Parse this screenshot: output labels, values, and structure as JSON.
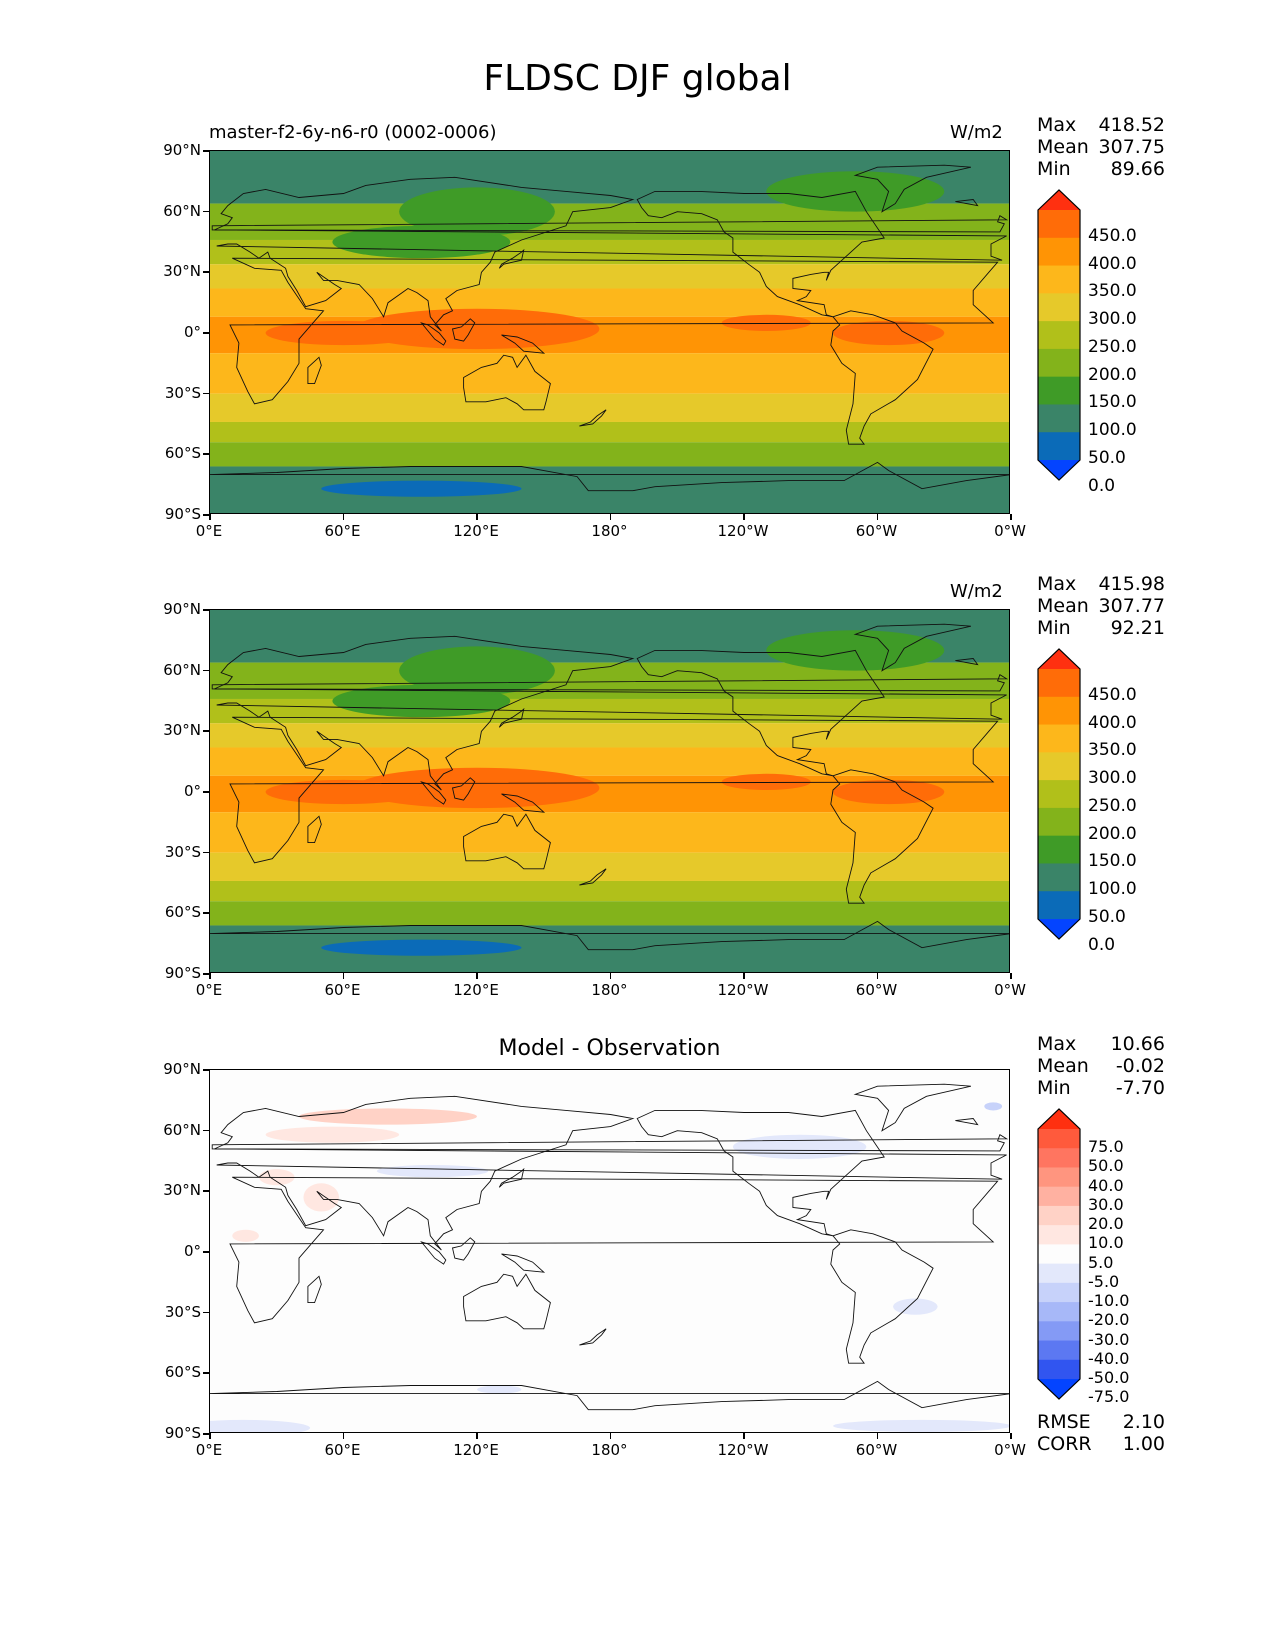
{
  "title": "FLDSC DJF global",
  "panels": [
    {
      "id": "model",
      "left_label": "master-f2-6y-n6-r0 (0002-0006)",
      "center_label": "",
      "units": "W/m2",
      "stats": [
        {
          "k": "Max",
          "v": "418.52"
        },
        {
          "k": "Mean",
          "v": "307.75"
        },
        {
          "k": "Min",
          "v": "89.66"
        }
      ],
      "colorbar": {
        "labels": [
          "450.0",
          "400.0",
          "350.0",
          "300.0",
          "250.0",
          "200.0",
          "150.0",
          "100.0",
          "50.0",
          "0.0"
        ],
        "colors": [
          "#ff3010",
          "#ff6c08",
          "#ff9405",
          "#fdb71b",
          "#e6c92a",
          "#b1c01a",
          "#83b31b",
          "#3f9b27",
          "#3a8468",
          "#0b6bb8",
          "#0444ff"
        ]
      },
      "footer": []
    },
    {
      "id": "obs",
      "left_label": "",
      "center_label": "",
      "units": "W/m2",
      "stats": [
        {
          "k": "Max",
          "v": "415.98"
        },
        {
          "k": "Mean",
          "v": "307.77"
        },
        {
          "k": "Min",
          "v": "92.21"
        }
      ],
      "colorbar": {
        "labels": [
          "450.0",
          "400.0",
          "350.0",
          "300.0",
          "250.0",
          "200.0",
          "150.0",
          "100.0",
          "50.0",
          "0.0"
        ],
        "colors": [
          "#ff3010",
          "#ff6c08",
          "#ff9405",
          "#fdb71b",
          "#e6c92a",
          "#b1c01a",
          "#83b31b",
          "#3f9b27",
          "#3a8468",
          "#0b6bb8",
          "#0444ff"
        ]
      },
      "footer": []
    },
    {
      "id": "diff",
      "left_label": "",
      "center_label": "Model - Observation",
      "units": "",
      "stats": [
        {
          "k": "Max",
          "v": "10.66"
        },
        {
          "k": "Mean",
          "v": "-0.02"
        },
        {
          "k": "Min",
          "v": "-7.70"
        }
      ],
      "colorbar": {
        "labels": [
          "75.0",
          "50.0",
          "40.0",
          "30.0",
          "20.0",
          "10.0",
          "5.0",
          "-5.0",
          "-10.0",
          "-20.0",
          "-30.0",
          "-40.0",
          "-50.0",
          "-75.0"
        ],
        "colors": [
          "#ff3010",
          "#ff5a3c",
          "#ff7560",
          "#ff957f",
          "#ffb1a1",
          "#ffd2c6",
          "#ffe7e1",
          "#fdfdfd",
          "#e3e8fb",
          "#c7d2fa",
          "#a7b8f8",
          "#849af5",
          "#5c78f2",
          "#3155f0",
          "#0444ff"
        ]
      },
      "footer": [
        {
          "k": "RMSE",
          "v": "2.10"
        },
        {
          "k": "CORR",
          "v": "1.00"
        }
      ]
    }
  ],
  "axes": {
    "lat_ticks": [
      "90°N",
      "60°N",
      "30°N",
      "0°",
      "30°S",
      "60°S",
      "90°S"
    ],
    "lon_ticks": [
      "0°E",
      "60°E",
      "120°E",
      "180°",
      "120°W",
      "60°W",
      "0°W"
    ]
  }
}
